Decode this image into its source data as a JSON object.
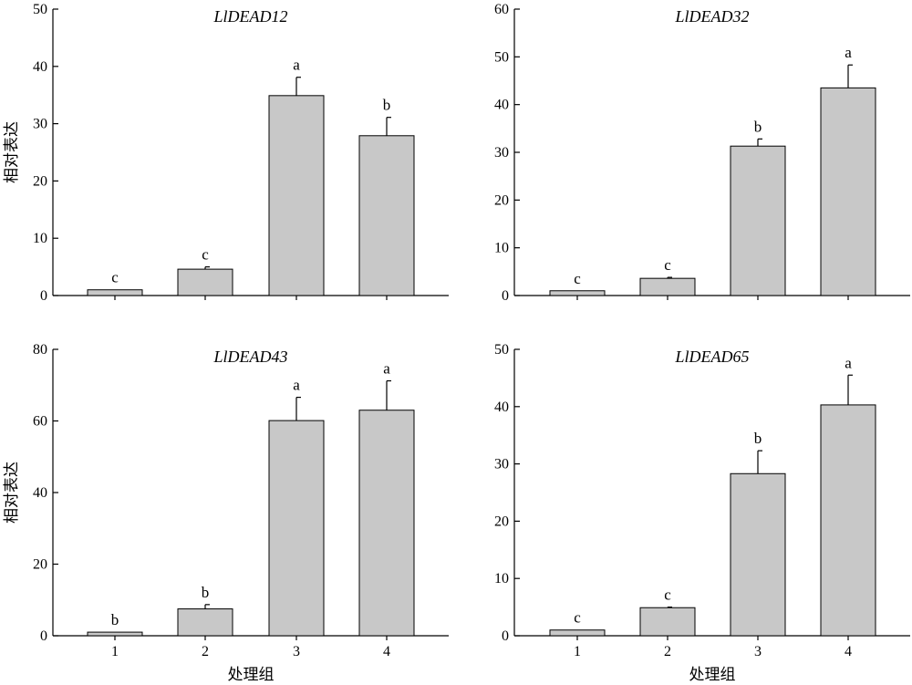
{
  "colors": {
    "bar_fill": "#c8c8c8",
    "axis": "#000000"
  },
  "x_axis_label": "处理组",
  "y_axis_label": "相对表达",
  "chart_data": [
    {
      "type": "bar",
      "title": "LlDEAD12",
      "categories": [
        "1",
        "2",
        "3",
        "4"
      ],
      "values": [
        1,
        4.6,
        34.9,
        27.9
      ],
      "errors": [
        0,
        0.4,
        3.2,
        3.2
      ],
      "significance": [
        "c",
        "c",
        "a",
        "b"
      ],
      "ylim": [
        0,
        50
      ],
      "yticks": [
        0,
        10,
        20,
        30,
        40,
        50
      ],
      "ylabel": "相对表达",
      "xlabel": ""
    },
    {
      "type": "bar",
      "title": "LlDEAD32",
      "categories": [
        "1",
        "2",
        "3",
        "4"
      ],
      "values": [
        1,
        3.6,
        31.3,
        43.5
      ],
      "errors": [
        0,
        0.2,
        1.5,
        4.8
      ],
      "significance": [
        "c",
        "c",
        "b",
        "a"
      ],
      "ylim": [
        0,
        60
      ],
      "yticks": [
        0,
        10,
        20,
        30,
        40,
        50,
        60
      ],
      "ylabel": "",
      "xlabel": ""
    },
    {
      "type": "bar",
      "title": "LlDEAD43",
      "categories": [
        "1",
        "2",
        "3",
        "4"
      ],
      "values": [
        1,
        7.5,
        60.1,
        63.0
      ],
      "errors": [
        0,
        1.2,
        6.5,
        8.2
      ],
      "significance": [
        "b",
        "b",
        "a",
        "a"
      ],
      "ylim": [
        0,
        80
      ],
      "yticks": [
        0,
        20,
        40,
        60,
        80
      ],
      "ylabel": "相对表达",
      "xlabel": "处理组"
    },
    {
      "type": "bar",
      "title": "LlDEAD65",
      "categories": [
        "1",
        "2",
        "3",
        "4"
      ],
      "values": [
        1,
        4.9,
        28.3,
        40.3
      ],
      "errors": [
        0,
        0.1,
        4.0,
        5.2
      ],
      "significance": [
        "c",
        "c",
        "b",
        "a"
      ],
      "ylim": [
        0,
        50
      ],
      "yticks": [
        0,
        10,
        20,
        30,
        40,
        50
      ],
      "ylabel": "",
      "xlabel": "处理组"
    }
  ]
}
